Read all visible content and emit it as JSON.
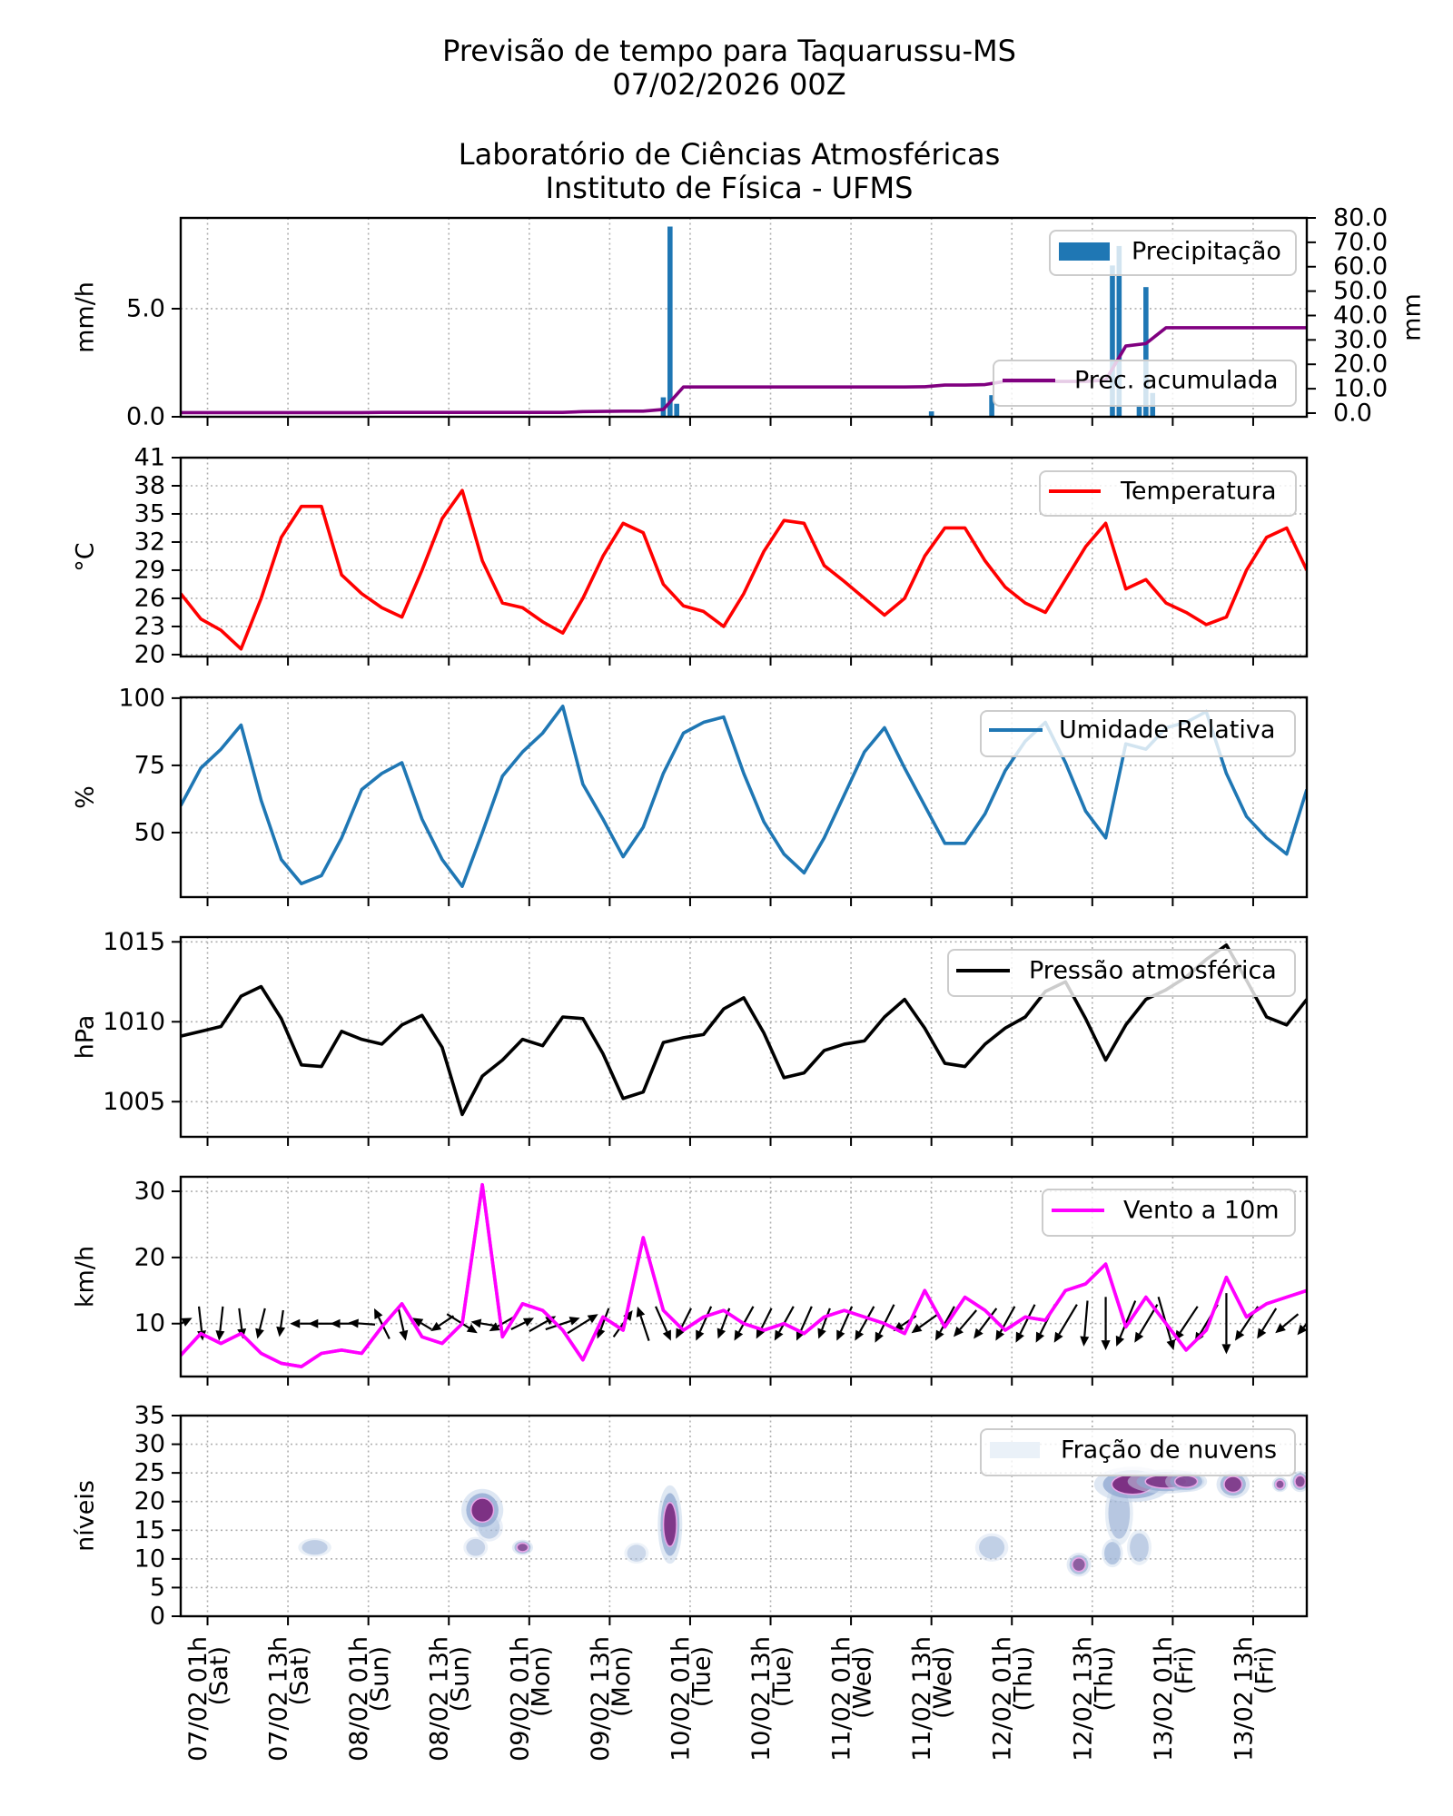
{
  "title": {
    "line1": "Previsão de tempo para Taquarussu-MS",
    "line2": "07/02/2026 00Z",
    "line3": "Laboratório de Ciências Atmosféricas",
    "line4": "Instituto de Física - UFMS"
  },
  "x_axis": {
    "xlim": [
      "06/02 21h",
      "13/02 21h"
    ],
    "ticks": [
      {
        "label": "07/02 01h",
        "day": "(Sat)"
      },
      {
        "label": "07/02 13h",
        "day": "(Sat)"
      },
      {
        "label": "08/02 01h",
        "day": "(Sun)"
      },
      {
        "label": "08/02 13h",
        "day": "(Sun)"
      },
      {
        "label": "09/02 01h",
        "day": "(Mon)"
      },
      {
        "label": "09/02 13h",
        "day": "(Mon)"
      },
      {
        "label": "10/02 01h",
        "day": "(Tue)"
      },
      {
        "label": "10/02 13h",
        "day": "(Tue)"
      },
      {
        "label": "11/02 01h",
        "day": "(Wed)"
      },
      {
        "label": "11/02 13h",
        "day": "(Wed)"
      },
      {
        "label": "12/02 01h",
        "day": "(Thu)"
      },
      {
        "label": "12/02 13h",
        "day": "(Thu)"
      },
      {
        "label": "13/02 01h",
        "day": "(Fri)"
      },
      {
        "label": "13/02 13h",
        "day": "(Fri)"
      }
    ]
  },
  "times": [
    "06/02 21h",
    "07/02 00h",
    "07/02 03h",
    "07/02 06h",
    "07/02 09h",
    "07/02 12h",
    "07/02 15h",
    "07/02 18h",
    "07/02 21h",
    "08/02 00h",
    "08/02 03h",
    "08/02 06h",
    "08/02 09h",
    "08/02 12h",
    "08/02 15h",
    "08/02 18h",
    "08/02 21h",
    "09/02 00h",
    "09/02 03h",
    "09/02 06h",
    "09/02 09h",
    "09/02 12h",
    "09/02 15h",
    "09/02 18h",
    "09/02 21h",
    "10/02 00h",
    "10/02 03h",
    "10/02 06h",
    "10/02 09h",
    "10/02 12h",
    "10/02 15h",
    "10/02 18h",
    "10/02 21h",
    "11/02 00h",
    "11/02 03h",
    "11/02 06h",
    "11/02 09h",
    "11/02 12h",
    "11/02 15h",
    "11/02 18h",
    "11/02 21h",
    "12/02 00h",
    "12/02 03h",
    "12/02 06h",
    "12/02 09h",
    "12/02 12h",
    "12/02 15h",
    "12/02 18h",
    "12/02 21h",
    "13/02 00h",
    "13/02 03h",
    "13/02 06h",
    "13/02 09h",
    "13/02 12h",
    "13/02 15h",
    "13/02 18h",
    "13/02 21h"
  ],
  "chart_data": [
    {
      "type": "bar",
      "ylabel": "mm/h",
      "ylim": [
        0,
        9.2
      ],
      "yticks": [
        "0.0",
        "5.0"
      ],
      "y2label": "mm",
      "y2lim": [
        -1.5,
        80
      ],
      "y2ticks": [
        "0.0",
        "10.0",
        "20.0",
        "30.0",
        "40.0",
        "50.0",
        "60.0",
        "70.0",
        "80.0"
      ],
      "grid": true,
      "legend_placement": "upper right",
      "bars": {
        "name": "Precipitação",
        "color": "#1f77b4",
        "points": [
          {
            "time": "09/02 21h",
            "value": 0.9
          },
          {
            "time": "09/02 22h",
            "value": 8.8
          },
          {
            "time": "09/02 23h",
            "value": 0.6
          },
          {
            "time": "11/02 13h",
            "value": 0.25
          },
          {
            "time": "11/02 22h",
            "value": 1.0
          },
          {
            "time": "12/02 16h",
            "value": 7.0
          },
          {
            "time": "12/02 17h",
            "value": 7.9
          },
          {
            "time": "12/02 20h",
            "value": 0.5
          },
          {
            "time": "12/02 21h",
            "value": 6.0
          },
          {
            "time": "12/02 22h",
            "value": 1.1
          }
        ]
      },
      "line": {
        "name": "Prec. acumulada",
        "color": "#800080",
        "axis": "right",
        "values": [
          0.2,
          0.2,
          0.2,
          0.2,
          0.2,
          0.2,
          0.2,
          0.2,
          0.2,
          0.2,
          0.3,
          0.3,
          0.3,
          0.3,
          0.3,
          0.3,
          0.3,
          0.3,
          0.3,
          0.3,
          0.6,
          0.7,
          0.8,
          0.8,
          1.5,
          10.7,
          10.7,
          10.7,
          10.7,
          10.7,
          10.7,
          10.7,
          10.7,
          10.7,
          10.7,
          10.7,
          10.7,
          10.8,
          11.5,
          11.5,
          11.7,
          13,
          13,
          13,
          13,
          13,
          13.5,
          27.5,
          28.5,
          35,
          35,
          35,
          35,
          35,
          35,
          35,
          35
        ]
      }
    },
    {
      "type": "line",
      "ylabel": "°C",
      "ylim": [
        19.8,
        41
      ],
      "yticks": [
        "20",
        "23",
        "26",
        "29",
        "32",
        "35",
        "38",
        "41"
      ],
      "grid": true,
      "legend_placement": "upper right",
      "series": [
        {
          "name": "Temperatura",
          "color": "#ff0000",
          "values": [
            26.5,
            23.8,
            22.6,
            20.6,
            26,
            32.5,
            35.8,
            35.8,
            28.5,
            26.5,
            25,
            24,
            29,
            34.5,
            37.5,
            30,
            25.5,
            25,
            23.5,
            22.3,
            26,
            30.5,
            34,
            33,
            27.5,
            25.2,
            24.6,
            23,
            26.5,
            31,
            34.3,
            34,
            29.5,
            27.8,
            26,
            24.2,
            26,
            30.5,
            33.5,
            33.5,
            30,
            27.2,
            25.5,
            24.5,
            28,
            31.5,
            34,
            27,
            28,
            25.5,
            24.5,
            23.2,
            24,
            29,
            32.5,
            33.5,
            29
          ]
        }
      ]
    },
    {
      "type": "line",
      "ylabel": "%",
      "ylim": [
        26,
        100.3
      ],
      "yticks": [
        "50",
        "75",
        "100"
      ],
      "grid": true,
      "legend_placement": "upper right",
      "series": [
        {
          "name": "Umidade Relativa",
          "color": "#1f77b4",
          "values": [
            60,
            74,
            81,
            90,
            62,
            40,
            31,
            34,
            48,
            66,
            72,
            76,
            55,
            40,
            30,
            50,
            71,
            80,
            87,
            97,
            68,
            55,
            41,
            52,
            72,
            87,
            91,
            93,
            72,
            54,
            42,
            35,
            48,
            64,
            80,
            89,
            74,
            60,
            46,
            46,
            57,
            73,
            84,
            91,
            76,
            58,
            48,
            83,
            81,
            89,
            91,
            95,
            72,
            56,
            48,
            42,
            66
          ]
        }
      ]
    },
    {
      "type": "line",
      "ylabel": "hPa",
      "ylim": [
        1002.8,
        1015.3
      ],
      "yticks": [
        "1005",
        "1010",
        "1015"
      ],
      "grid": true,
      "legend_placement": "upper right",
      "series": [
        {
          "name": "Pressão atmosférica",
          "color": "#000000",
          "values": [
            1009.1,
            1009.4,
            1009.7,
            1011.6,
            1012.2,
            1010.2,
            1007.3,
            1007.2,
            1009.4,
            1008.9,
            1008.6,
            1009.8,
            1010.4,
            1008.4,
            1004.2,
            1006.6,
            1007.6,
            1008.9,
            1008.5,
            1010.3,
            1010.2,
            1008.0,
            1005.2,
            1005.6,
            1008.7,
            1009.0,
            1009.2,
            1010.8,
            1011.5,
            1009.3,
            1006.5,
            1006.8,
            1008.2,
            1008.6,
            1008.8,
            1010.3,
            1011.4,
            1009.6,
            1007.4,
            1007.2,
            1008.6,
            1009.6,
            1010.3,
            1011.9,
            1012.5,
            1010.2,
            1007.6,
            1009.8,
            1011.4,
            1012.0,
            1012.8,
            1013.9,
            1014.8,
            1012.6,
            1010.3,
            1009.8,
            1011.4
          ]
        }
      ]
    },
    {
      "type": "line",
      "ylabel": "km/h",
      "ylim": [
        2,
        32.2
      ],
      "yticks": [
        "10",
        "20",
        "30"
      ],
      "grid": true,
      "legend_placement": "upper right",
      "series": [
        {
          "name": "Vento a 10m",
          "color": "#ff00ff",
          "values": [
            5.2,
            8.5,
            7,
            8.5,
            5.5,
            4,
            3.5,
            5.5,
            6,
            5.5,
            9.5,
            13,
            8,
            7,
            10,
            31,
            8,
            13,
            12,
            9,
            4.5,
            11,
            9,
            23,
            12,
            9,
            11,
            12,
            10,
            9,
            10,
            8.5,
            11,
            12,
            11,
            10,
            8.5,
            15,
            9.5,
            14,
            12,
            9,
            11,
            10.5,
            15,
            16,
            19,
            9.5,
            14,
            10,
            6,
            9,
            17,
            11,
            13,
            14,
            15
          ]
        }
      ],
      "wind_vectors": {
        "color": "#000000",
        "u": [
          6,
          1,
          -1,
          1,
          -2,
          -1,
          -6,
          -7,
          -6,
          -7,
          -4,
          2,
          -5,
          -6,
          8,
          -6,
          -7,
          6,
          7,
          9,
          8,
          -3,
          5,
          -3,
          4,
          -4,
          -4,
          -3,
          -5,
          -4,
          -5,
          -4,
          -3,
          -4,
          -5,
          -5,
          -6,
          -7,
          -5,
          -6,
          -6,
          -5,
          -5,
          -5,
          -6,
          -1,
          0,
          -5,
          -6,
          4,
          -6,
          -6,
          0,
          -6,
          -5,
          -6,
          -5
        ],
        "v": [
          3,
          -9,
          -9,
          -8,
          -8,
          -7,
          0,
          0,
          0,
          0.5,
          8,
          -9,
          3,
          -4,
          -5,
          1,
          -4,
          3,
          4,
          3,
          5,
          -8,
          7,
          9,
          -9,
          -8,
          -9,
          -8,
          -9,
          -8,
          -9,
          -9,
          -8,
          -9,
          -9,
          -10,
          -4,
          -5,
          -9,
          -7,
          -8,
          -9,
          -10,
          -10,
          -10,
          -12,
          -14,
          -12,
          -10,
          -14,
          -9,
          -10,
          -16,
          -9,
          -8,
          -5,
          -6
        ]
      }
    },
    {
      "type": "heatmap",
      "ylabel": "níveis",
      "ylim": [
        0,
        35
      ],
      "yticks": [
        "0",
        "5",
        "10",
        "15",
        "20",
        "25",
        "30",
        "35"
      ],
      "grid": true,
      "legend_placement": "upper right",
      "series": [
        {
          "name": "Fração de nuvens",
          "color": "#eaf1f8"
        }
      ],
      "cloud_cells": [
        {
          "time": "07/02 17h",
          "level": 12,
          "dt": 1.5,
          "dl": 0.8,
          "intensity": 0.35
        },
        {
          "time": "08/02 17h",
          "level": 12,
          "dt": 1,
          "dl": 1,
          "intensity": 0.25
        },
        {
          "time": "08/02 19h",
          "level": 15.5,
          "dt": 1.2,
          "dl": 1.5,
          "intensity": 0.3
        },
        {
          "time": "08/02 18h",
          "level": 18.5,
          "dt": 2,
          "dl": 2.5,
          "intensity": 0.95
        },
        {
          "time": "09/02 00h",
          "level": 12,
          "dt": 0.8,
          "dl": 0.6,
          "intensity": 0.7
        },
        {
          "time": "09/02 17h",
          "level": 11,
          "dt": 1,
          "dl": 1,
          "intensity": 0.12
        },
        {
          "time": "09/02 22h",
          "level": 16,
          "dt": 1,
          "dl": 5,
          "intensity": 0.9
        },
        {
          "time": "11/02 22h",
          "level": 12,
          "dt": 1.5,
          "dl": 1.5,
          "intensity": 0.3
        },
        {
          "time": "12/02 11h",
          "level": 9,
          "dt": 1,
          "dl": 1.2,
          "intensity": 0.65
        },
        {
          "time": "12/02 16h",
          "level": 11,
          "dt": 0.8,
          "dl": 1.5,
          "intensity": 0.55
        },
        {
          "time": "12/02 17h",
          "level": 18,
          "dt": 1.2,
          "dl": 4,
          "intensity": 0.5
        },
        {
          "time": "12/02 20h",
          "level": 12,
          "dt": 1,
          "dl": 2,
          "intensity": 0.35
        },
        {
          "time": "12/02 19h",
          "level": 23,
          "dt": 4,
          "dl": 2,
          "intensity": 0.95
        },
        {
          "time": "13/02 00h",
          "level": 23.5,
          "dt": 4,
          "dl": 1.2,
          "intensity": 0.85
        },
        {
          "time": "13/02 03h",
          "level": 23.5,
          "dt": 2,
          "dl": 1,
          "intensity": 0.7
        },
        {
          "time": "13/02 10h",
          "level": 23,
          "dt": 1.5,
          "dl": 1.5,
          "intensity": 0.85
        },
        {
          "time": "13/02 17h",
          "level": 23,
          "dt": 0.5,
          "dl": 0.6,
          "intensity": 0.7
        },
        {
          "time": "13/02 20h",
          "level": 23.5,
          "dt": 0.7,
          "dl": 1,
          "intensity": 0.75
        }
      ]
    }
  ]
}
